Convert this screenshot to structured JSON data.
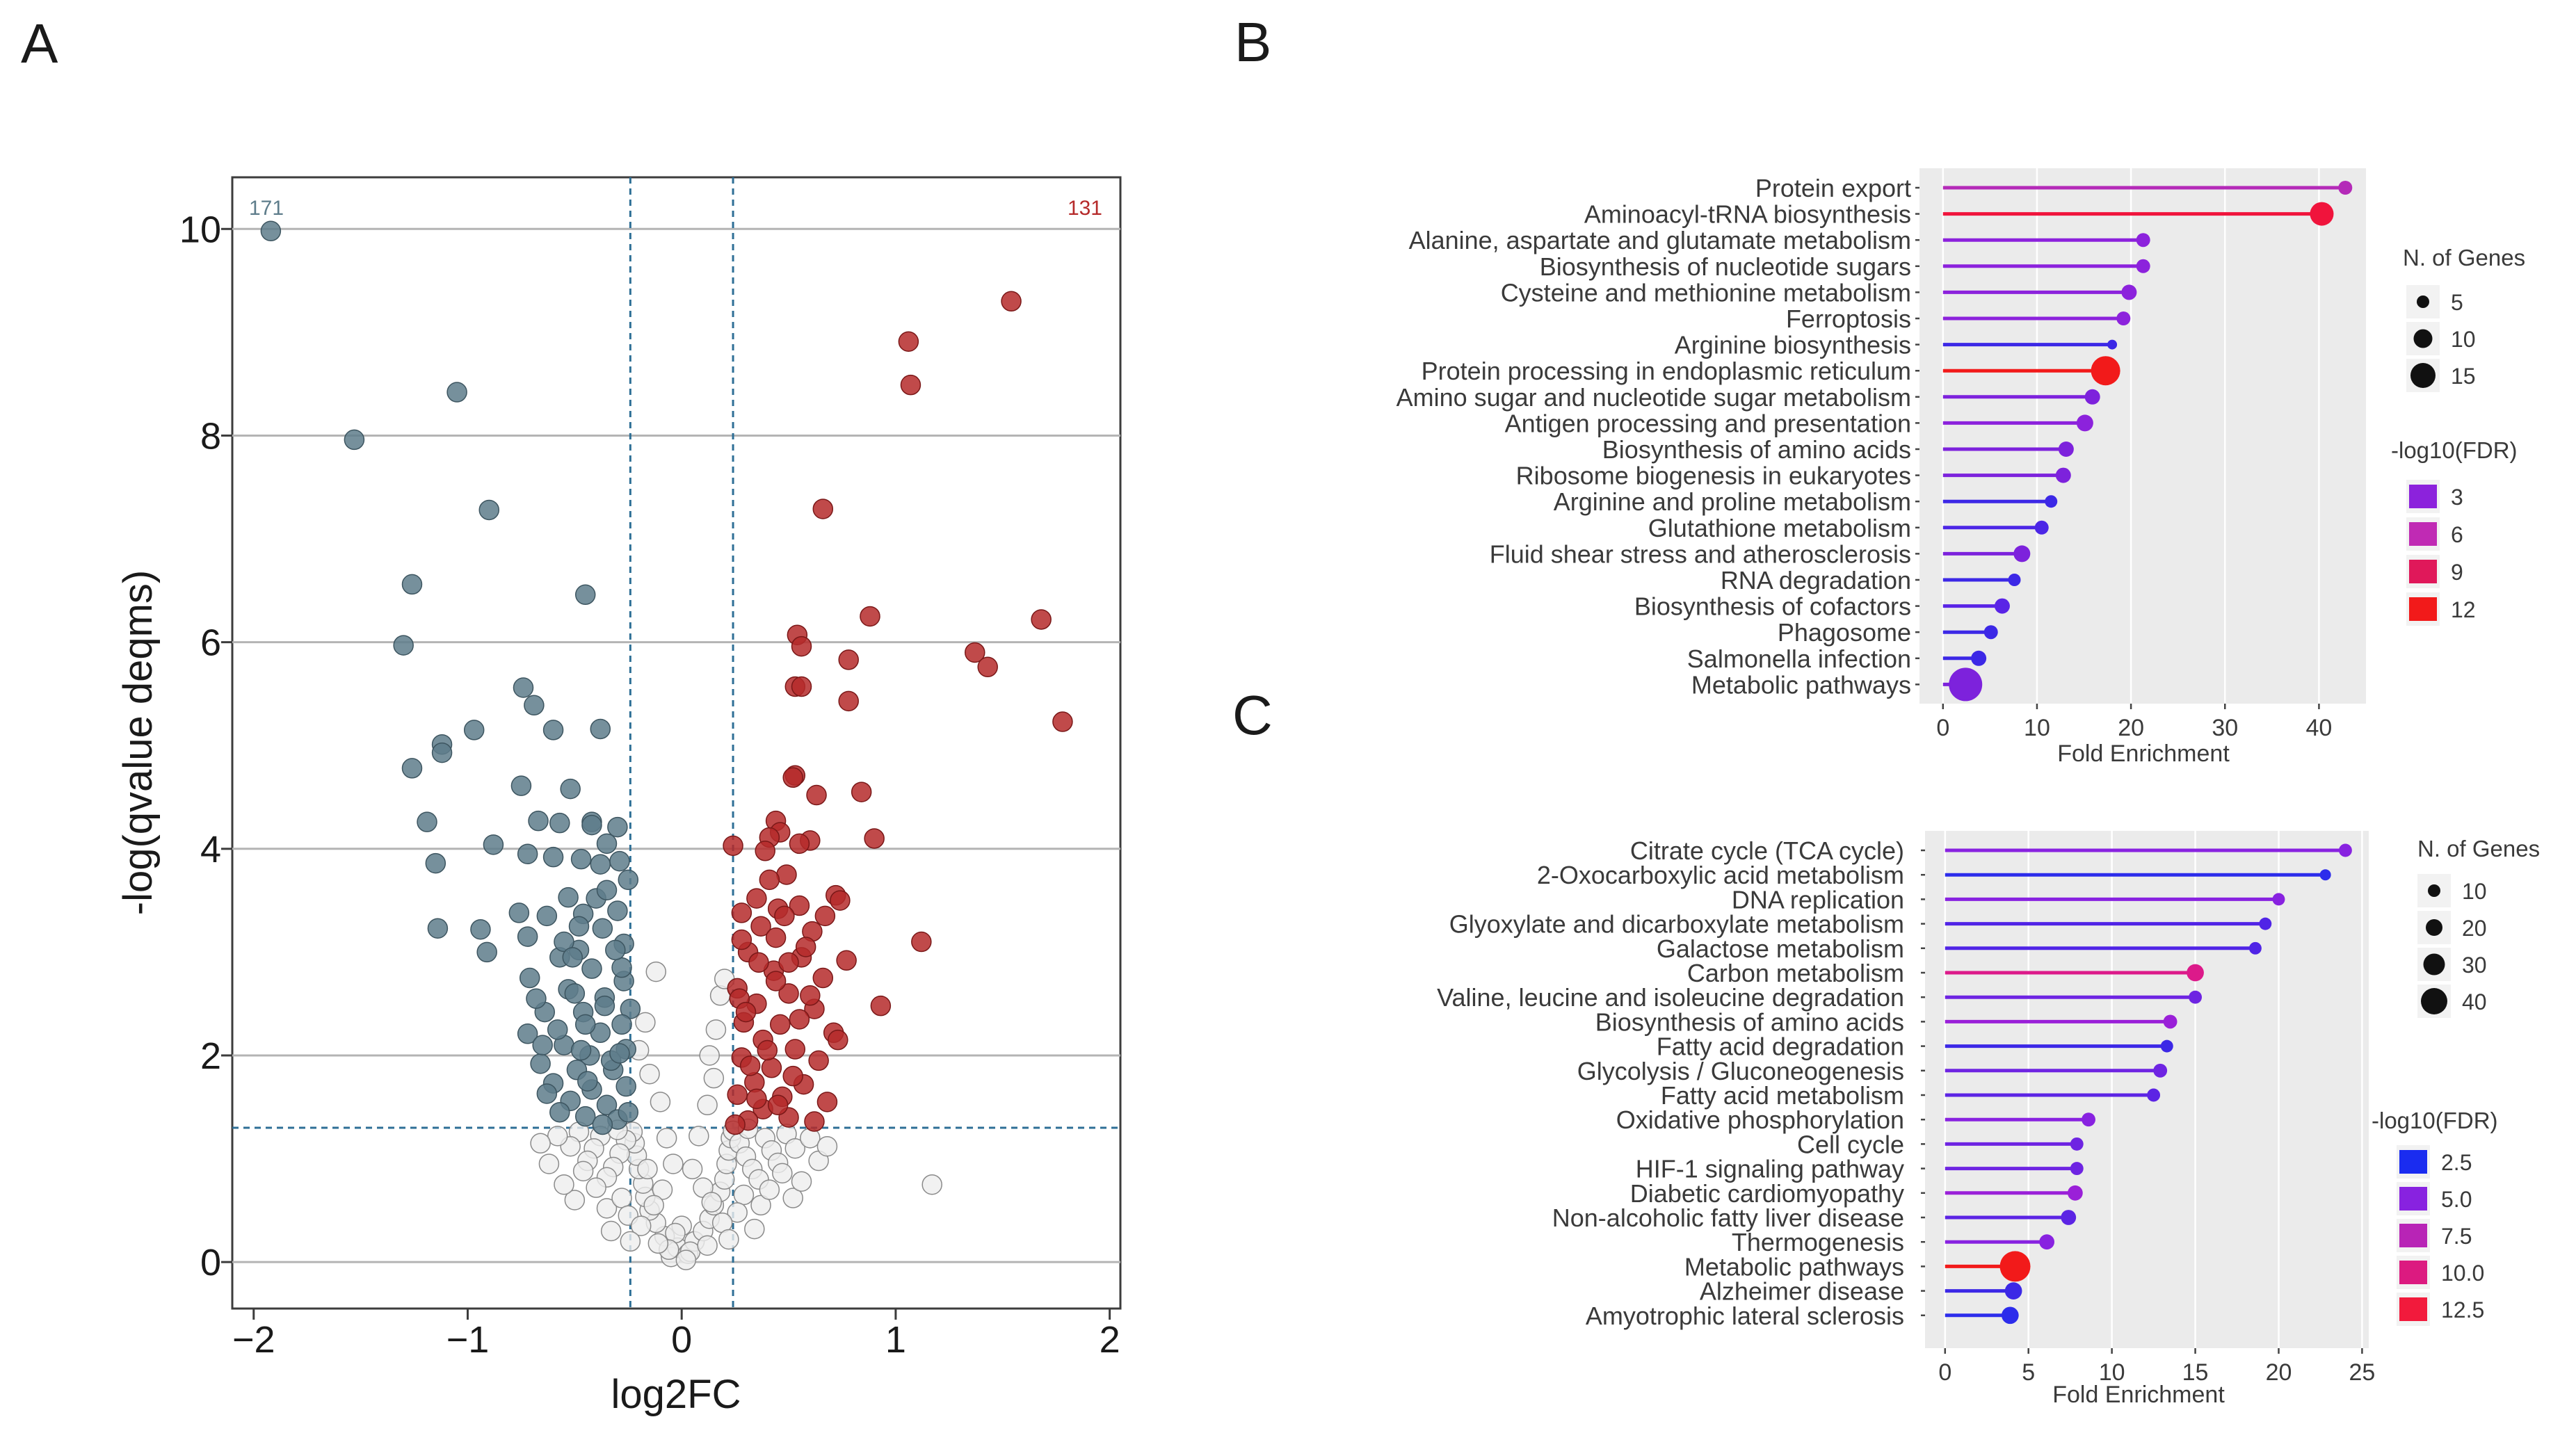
{
  "panels": {
    "a": "A",
    "b": "B",
    "c": "C"
  },
  "volcano": {
    "type": "scatter",
    "xlabel": "log2FC",
    "ylabel": "-log(qvalue deqms)",
    "xlim": [
      -2.1,
      2.05
    ],
    "ylim": [
      -0.45,
      10.5
    ],
    "xticks": [
      -2,
      -1,
      0,
      1,
      2
    ],
    "xtick_labels": [
      "−2",
      "−1",
      "0",
      "1",
      "2"
    ],
    "yticks": [
      0,
      2,
      4,
      6,
      8,
      10
    ],
    "ytick_labels": [
      "0",
      "2",
      "4",
      "6",
      "8",
      "10"
    ],
    "gridlines_y": [
      0,
      2,
      4,
      6,
      8,
      10
    ],
    "fc_thresholds": [
      -0.24,
      0.24
    ],
    "q_threshold": 1.3,
    "count_down": "171",
    "count_up": "131",
    "colors": {
      "down": "#5e7d8b",
      "up": "#b52a2a",
      "ns": "#eeeeee",
      "ns_edge": "#8a8a8a",
      "threshold": "#2e6f96",
      "grid": "#b4b4b4"
    },
    "down_points": [
      [
        -1.92,
        9.98
      ],
      [
        -1.05,
        8.42
      ],
      [
        -1.53,
        7.96
      ],
      [
        -0.9,
        7.28
      ],
      [
        -1.26,
        6.56
      ],
      [
        -0.45,
        6.46
      ],
      [
        -1.3,
        5.97
      ],
      [
        -0.74,
        5.56
      ],
      [
        -0.69,
        5.39
      ],
      [
        -0.38,
        5.16
      ],
      [
        -0.97,
        5.15
      ],
      [
        -1.12,
        5.01
      ],
      [
        -1.12,
        4.93
      ],
      [
        -0.6,
        5.15
      ],
      [
        -1.26,
        4.78
      ],
      [
        -0.75,
        4.61
      ],
      [
        -0.52,
        4.58
      ],
      [
        -1.19,
        4.26
      ],
      [
        -0.67,
        4.27
      ],
      [
        -0.88,
        4.04
      ],
      [
        -1.15,
        3.86
      ],
      [
        -0.57,
        4.25
      ],
      [
        -0.42,
        4.26
      ],
      [
        -0.3,
        4.21
      ],
      [
        -0.35,
        4.05
      ],
      [
        -0.47,
        3.9
      ],
      [
        -0.6,
        3.92
      ],
      [
        -0.72,
        3.95
      ],
      [
        -0.29,
        3.88
      ],
      [
        -0.25,
        3.7
      ],
      [
        -0.4,
        3.52
      ],
      [
        -0.53,
        3.53
      ],
      [
        -0.3,
        3.4
      ],
      [
        -0.76,
        3.38
      ],
      [
        -0.63,
        3.35
      ],
      [
        -0.46,
        3.37
      ],
      [
        -1.14,
        3.23
      ],
      [
        -0.94,
        3.22
      ],
      [
        -0.37,
        3.23
      ],
      [
        -0.72,
        3.15
      ],
      [
        -0.48,
        3.02
      ],
      [
        -0.27,
        3.08
      ],
      [
        -0.91,
        3.0
      ],
      [
        -0.57,
        2.95
      ],
      [
        -0.42,
        2.84
      ],
      [
        -0.27,
        2.72
      ],
      [
        -0.71,
        2.75
      ],
      [
        -0.53,
        2.64
      ],
      [
        -0.36,
        2.56
      ],
      [
        -0.46,
        2.42
      ],
      [
        -0.24,
        2.45
      ],
      [
        -0.64,
        2.42
      ],
      [
        -0.28,
        2.3
      ],
      [
        -0.72,
        2.21
      ],
      [
        -0.38,
        2.22
      ],
      [
        -0.55,
        2.1
      ],
      [
        -0.43,
        2.0
      ],
      [
        -0.26,
        2.06
      ],
      [
        -0.66,
        1.92
      ],
      [
        -0.49,
        1.86
      ],
      [
        -0.32,
        1.86
      ],
      [
        -0.6,
        1.73
      ],
      [
        -0.42,
        1.67
      ],
      [
        -0.26,
        1.7
      ],
      [
        -0.52,
        1.56
      ],
      [
        -0.35,
        1.52
      ],
      [
        -0.45,
        1.41
      ],
      [
        -0.3,
        1.38
      ],
      [
        -0.5,
        2.6
      ],
      [
        -0.65,
        2.1
      ],
      [
        -0.35,
        3.6
      ],
      [
        -0.55,
        3.1
      ],
      [
        -0.45,
        2.3
      ],
      [
        -0.33,
        1.95
      ],
      [
        -0.57,
        1.45
      ],
      [
        -0.42,
        4.23
      ],
      [
        -0.63,
        1.63
      ],
      [
        -0.28,
        2.85
      ],
      [
        -0.37,
        1.33
      ],
      [
        -0.48,
        3.25
      ],
      [
        -0.29,
        2.02
      ],
      [
        -0.58,
        2.25
      ],
      [
        -0.36,
        2.48
      ],
      [
        -0.44,
        1.75
      ],
      [
        -0.51,
        2.95
      ],
      [
        -0.31,
        3.02
      ],
      [
        -0.68,
        2.55
      ],
      [
        -0.25,
        1.45
      ],
      [
        -0.38,
        3.85
      ],
      [
        -0.47,
        2.05
      ]
    ],
    "up_points": [
      [
        1.54,
        9.3
      ],
      [
        1.06,
        8.91
      ],
      [
        1.07,
        8.49
      ],
      [
        0.66,
        7.29
      ],
      [
        1.68,
        6.22
      ],
      [
        0.88,
        6.25
      ],
      [
        0.54,
        6.07
      ],
      [
        0.56,
        5.96
      ],
      [
        1.37,
        5.9
      ],
      [
        0.78,
        5.83
      ],
      [
        1.43,
        5.76
      ],
      [
        0.53,
        5.57
      ],
      [
        0.56,
        5.57
      ],
      [
        0.78,
        5.43
      ],
      [
        1.78,
        5.23
      ],
      [
        0.53,
        4.71
      ],
      [
        0.52,
        4.69
      ],
      [
        0.63,
        4.52
      ],
      [
        0.84,
        4.55
      ],
      [
        0.44,
        4.27
      ],
      [
        0.46,
        4.16
      ],
      [
        0.41,
        4.11
      ],
      [
        0.6,
        4.08
      ],
      [
        0.9,
        4.1
      ],
      [
        0.24,
        4.03
      ],
      [
        0.39,
        3.98
      ],
      [
        0.49,
        3.75
      ],
      [
        0.35,
        3.52
      ],
      [
        0.55,
        3.45
      ],
      [
        0.45,
        3.42
      ],
      [
        0.72,
        3.55
      ],
      [
        0.74,
        3.5
      ],
      [
        0.28,
        3.38
      ],
      [
        0.37,
        3.25
      ],
      [
        0.61,
        3.2
      ],
      [
        0.44,
        3.14
      ],
      [
        1.12,
        3.1
      ],
      [
        0.31,
        3.0
      ],
      [
        0.56,
        2.95
      ],
      [
        0.77,
        2.92
      ],
      [
        0.43,
        2.82
      ],
      [
        0.66,
        2.75
      ],
      [
        0.26,
        2.65
      ],
      [
        0.5,
        2.6
      ],
      [
        0.35,
        2.5
      ],
      [
        0.93,
        2.48
      ],
      [
        0.62,
        2.45
      ],
      [
        0.29,
        2.32
      ],
      [
        0.46,
        2.3
      ],
      [
        0.71,
        2.22
      ],
      [
        0.38,
        2.15
      ],
      [
        0.53,
        2.06
      ],
      [
        0.28,
        1.98
      ],
      [
        0.64,
        1.95
      ],
      [
        0.42,
        1.88
      ],
      [
        0.34,
        1.74
      ],
      [
        0.57,
        1.72
      ],
      [
        0.26,
        1.62
      ],
      [
        0.47,
        1.6
      ],
      [
        0.68,
        1.55
      ],
      [
        0.38,
        1.48
      ],
      [
        0.31,
        1.37
      ],
      [
        0.5,
        1.4
      ],
      [
        0.62,
        1.36
      ],
      [
        0.25,
        1.33
      ],
      [
        0.45,
        1.52
      ],
      [
        0.55,
        2.35
      ],
      [
        0.36,
        2.9
      ],
      [
        0.48,
        3.35
      ],
      [
        0.4,
        2.05
      ],
      [
        0.58,
        3.05
      ],
      [
        0.32,
        1.9
      ],
      [
        0.52,
        1.8
      ],
      [
        0.27,
        2.55
      ],
      [
        0.44,
        2.72
      ],
      [
        0.6,
        2.58
      ],
      [
        0.35,
        1.58
      ],
      [
        0.67,
        3.35
      ],
      [
        0.28,
        3.12
      ],
      [
        0.55,
        4.05
      ],
      [
        0.41,
        3.7
      ],
      [
        0.73,
        2.15
      ],
      [
        0.5,
        2.9
      ],
      [
        0.3,
        2.42
      ]
    ],
    "ns_points": [
      [
        -0.05,
        0.05
      ],
      [
        -0.02,
        0.14
      ],
      [
        0.03,
        0.08
      ],
      [
        0.06,
        0.2
      ],
      [
        -0.08,
        0.25
      ],
      [
        0.1,
        0.3
      ],
      [
        -0.12,
        0.38
      ],
      [
        0.13,
        0.42
      ],
      [
        -0.15,
        0.5
      ],
      [
        0.15,
        0.55
      ],
      [
        -0.17,
        0.63
      ],
      [
        0.18,
        0.68
      ],
      [
        -0.18,
        0.76
      ],
      [
        0.2,
        0.8
      ],
      [
        -0.2,
        0.9
      ],
      [
        0.21,
        0.95
      ],
      [
        -0.21,
        1.03
      ],
      [
        0.22,
        1.08
      ],
      [
        -0.22,
        1.15
      ],
      [
        0.23,
        1.2
      ],
      [
        -0.23,
        1.26
      ],
      [
        0.24,
        1.27
      ],
      [
        -0.26,
        1.18
      ],
      [
        0.27,
        1.15
      ],
      [
        -0.29,
        1.05
      ],
      [
        0.3,
        1.02
      ],
      [
        -0.32,
        0.92
      ],
      [
        0.33,
        0.9
      ],
      [
        -0.35,
        0.82
      ],
      [
        0.36,
        0.8
      ],
      [
        -0.38,
        1.22
      ],
      [
        0.39,
        1.2
      ],
      [
        -0.41,
        1.1
      ],
      [
        0.42,
        1.08
      ],
      [
        -0.44,
        0.98
      ],
      [
        0.45,
        0.96
      ],
      [
        -0.48,
        1.26
      ],
      [
        0.49,
        1.24
      ],
      [
        -0.52,
        1.12
      ],
      [
        0.53,
        1.1
      ],
      [
        -0.58,
        1.22
      ],
      [
        0.6,
        1.2
      ],
      [
        -0.2,
        2.05
      ],
      [
        -0.17,
        2.32
      ],
      [
        -0.12,
        2.81
      ],
      [
        0.18,
        2.58
      ],
      [
        0.16,
        2.25
      ],
      [
        0.13,
        2.0
      ],
      [
        0.2,
        2.74
      ],
      [
        -0.15,
        1.82
      ],
      [
        0.15,
        1.78
      ],
      [
        -0.1,
        1.55
      ],
      [
        0.12,
        1.52
      ],
      [
        -0.07,
        1.2
      ],
      [
        0.08,
        1.22
      ],
      [
        -0.04,
        0.95
      ],
      [
        0.05,
        0.9
      ],
      [
        -0.09,
        0.7
      ],
      [
        0.1,
        0.72
      ],
      [
        -0.13,
        0.55
      ],
      [
        0.14,
        0.58
      ],
      [
        0.0,
        0.35
      ],
      [
        -0.03,
        0.28
      ],
      [
        0.04,
        0.1
      ],
      [
        -0.06,
        0.12
      ],
      [
        0.02,
        0.02
      ],
      [
        1.17,
        0.75
      ],
      [
        -0.35,
        0.52
      ],
      [
        0.37,
        0.55
      ],
      [
        -0.28,
        0.62
      ],
      [
        0.29,
        0.65
      ],
      [
        -0.25,
        0.45
      ],
      [
        0.26,
        0.48
      ],
      [
        -0.4,
        0.72
      ],
      [
        0.41,
        0.7
      ],
      [
        -0.46,
        0.88
      ],
      [
        0.47,
        0.86
      ],
      [
        -0.3,
        1.28
      ],
      [
        0.31,
        1.29
      ],
      [
        -0.19,
        0.35
      ],
      [
        0.19,
        0.38
      ],
      [
        -0.24,
        0.2
      ],
      [
        0.22,
        0.22
      ],
      [
        -0.33,
        0.3
      ],
      [
        0.34,
        0.32
      ],
      [
        -0.5,
        0.6
      ],
      [
        0.52,
        0.62
      ],
      [
        -0.55,
        0.75
      ],
      [
        0.56,
        0.78
      ],
      [
        -0.62,
        0.95
      ],
      [
        0.64,
        0.98
      ],
      [
        -0.66,
        1.15
      ],
      [
        0.68,
        1.12
      ],
      [
        -0.11,
        0.18
      ],
      [
        0.12,
        0.16
      ],
      [
        -0.16,
        0.9
      ]
    ]
  },
  "kegg_b": {
    "type": "lollipop",
    "xlabel": "Fold Enrichment",
    "xlim": [
      -2.5,
      45
    ],
    "xticks": [
      0,
      10,
      20,
      30,
      40
    ],
    "xtick_labels": [
      "0",
      "10",
      "20",
      "30",
      "40"
    ],
    "categories": [
      "Protein export",
      "Aminoacyl-tRNA biosynthesis",
      "Alanine, aspartate and glutamate metabolism",
      "Biosynthesis of nucleotide sugars",
      "Cysteine and methionine metabolism",
      "Ferroptosis",
      "Arginine biosynthesis",
      "Protein processing in endoplasmic reticulum",
      "Amino sugar and nucleotide sugar metabolism",
      "Antigen processing and presentation",
      "Biosynthesis of amino acids",
      "Ribosome biogenesis in eukaryotes",
      "Arginine and proline metabolism",
      "Glutathione metabolism",
      "Fluid shear stress and atherosclerosis",
      "RNA degradation",
      "Biosynthesis of cofactors",
      "Phagosome",
      "Salmonella infection",
      "Metabolic pathways"
    ],
    "values": [
      42.8,
      40.3,
      21.3,
      21.3,
      19.8,
      19.2,
      18.0,
      17.3,
      15.9,
      15.1,
      13.1,
      12.8,
      11.5,
      10.5,
      8.4,
      7.6,
      6.3,
      5.1,
      3.8,
      2.4
    ],
    "n_genes": [
      6,
      13,
      6,
      6,
      7,
      6,
      3,
      17,
      7,
      8,
      7,
      7,
      5,
      6,
      8,
      5,
      7,
      6,
      7,
      20
    ],
    "colors": [
      "#b42ab8",
      "#f0143c",
      "#8c22dc",
      "#8c22dc",
      "#8c22dc",
      "#8c22dc",
      "#3c28e6",
      "#f21a1a",
      "#7d22dc",
      "#8c22dc",
      "#7d22dc",
      "#7d22dc",
      "#3c28e6",
      "#4c26e6",
      "#7d22dc",
      "#3c28e6",
      "#5a24e6",
      "#3c28e6",
      "#3c28e6",
      "#7d22dc"
    ],
    "size_legend": {
      "title": "N. of Genes",
      "labels": [
        "5",
        "10",
        "15"
      ],
      "values": [
        5,
        10,
        15
      ]
    },
    "color_legend": {
      "title": "-log10(FDR)",
      "labels": [
        "3",
        "6",
        "9",
        "12"
      ],
      "colors": [
        "#8c22dc",
        "#c02ab4",
        "#e0185a",
        "#f21a1a"
      ]
    }
  },
  "kegg_c": {
    "type": "lollipop",
    "xlabel": "Fold Enrichment",
    "xlim": [
      -1.2,
      25.4
    ],
    "xticks": [
      0,
      5,
      10,
      15,
      20,
      25
    ],
    "xtick_labels": [
      "0",
      "5",
      "10",
      "15",
      "20",
      "25"
    ],
    "categories": [
      "Citrate cycle (TCA cycle)",
      "2-Oxocarboxylic acid metabolism",
      "DNA replication",
      "Glyoxylate and dicarboxylate metabolism",
      "Galactose metabolism",
      "Carbon metabolism",
      "Valine, leucine and isoleucine degradation",
      "Biosynthesis of amino acids",
      "Fatty acid degradation",
      "Glycolysis / Gluconeogenesis",
      "Fatty acid metabolism",
      "Oxidative phosphorylation",
      "Cell cycle",
      "HIF-1 signaling pathway",
      "Diabetic cardiomyopathy",
      "Non-alcoholic fatty liver disease",
      "Thermogenesis",
      "Metabolic pathways",
      "Alzheimer disease",
      "Amyotrophic lateral sclerosis"
    ],
    "values": [
      24.0,
      22.8,
      20.0,
      19.2,
      18.6,
      15.0,
      15.0,
      13.5,
      13.3,
      12.9,
      12.5,
      8.6,
      7.9,
      7.9,
      7.8,
      7.4,
      6.1,
      4.2,
      4.1,
      3.9
    ],
    "n_genes": [
      8,
      5,
      7,
      7,
      7,
      14,
      8,
      9,
      7,
      9,
      8,
      9,
      8,
      8,
      11,
      11,
      11,
      34,
      14,
      14
    ],
    "colors": [
      "#8822e0",
      "#2c2ceb",
      "#8822e0",
      "#5024e6",
      "#5024e6",
      "#dc1a8a",
      "#6e24e2",
      "#9a20d8",
      "#3c28e6",
      "#6e24e2",
      "#5c24e4",
      "#8822e0",
      "#6e24e2",
      "#6e24e2",
      "#9a20d8",
      "#5c24e4",
      "#8822e0",
      "#f21a1a",
      "#3c28e6",
      "#2c2ceb"
    ],
    "size_legend": {
      "title": "N. of Genes",
      "labels": [
        "10",
        "20",
        "30",
        "40"
      ],
      "values": [
        10,
        20,
        30,
        40
      ]
    },
    "color_legend": {
      "title": "-log10(FDR)",
      "labels": [
        "2.5",
        "5.0",
        "7.5",
        "10.0",
        "12.5"
      ],
      "colors": [
        "#1a2cf0",
        "#8822e0",
        "#b824b6",
        "#dc1a80",
        "#f21a3c"
      ]
    }
  }
}
